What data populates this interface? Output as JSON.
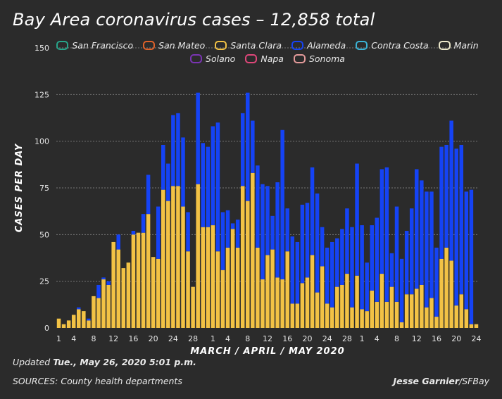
{
  "title": "Bay Area coronavirus cases – 12,858 total",
  "footer": {
    "updated_prefix": "Updated ",
    "updated_value": "Tue., May 26, 2020 5:01 p.m.",
    "sources": "SOURCES: County health departments",
    "credit_author": "Jesse Garnier",
    "credit_suffix": "/SFBay"
  },
  "colors": {
    "background": "#2b2b2b",
    "santa_clara": "#f2c245",
    "alameda": "#1543f5",
    "grid": "#777777"
  },
  "legend": [
    {
      "name": "San Francisco",
      "color": "#27a58a"
    },
    {
      "name": "San Mateo",
      "color": "#e0622a"
    },
    {
      "name": "Santa Clara",
      "color": "#f2c245"
    },
    {
      "name": "Alameda",
      "color": "#1543f5"
    },
    {
      "name": "Contra Costa",
      "color": "#3bb3d6"
    },
    {
      "name": "Marin",
      "color": "#ece7c9"
    },
    {
      "name": "Solano",
      "color": "#7a34b3"
    },
    {
      "name": "Napa",
      "color": "#e0477a"
    },
    {
      "name": "Sonoma",
      "color": "#e39a9a"
    }
  ],
  "chart_data": {
    "type": "bar",
    "stacked": true,
    "xlabel": "MARCH / APRIL / MAY 2020",
    "ylabel": "CASES PER DAY",
    "ylim": [
      0,
      150
    ],
    "yticks": [
      0,
      25,
      50,
      75,
      100,
      125,
      150
    ],
    "xtick_labels": [
      "1",
      "4",
      "8",
      "12",
      "16",
      "20",
      "24",
      "28",
      "1",
      "4",
      "8",
      "12",
      "16",
      "20",
      "24",
      "28",
      "1",
      "4",
      "8",
      "12",
      "16",
      "20",
      "24"
    ],
    "xtick_index": [
      0,
      3,
      7,
      11,
      15,
      19,
      23,
      27,
      31,
      34,
      38,
      42,
      46,
      50,
      54,
      58,
      61,
      64,
      68,
      72,
      76,
      80,
      84
    ],
    "grid": true,
    "series": [
      {
        "name": "Santa Clara",
        "color": "#f2c245",
        "values": [
          5,
          2,
          4,
          7,
          10,
          9,
          4,
          17,
          16,
          26,
          23,
          46,
          42,
          32,
          35,
          50,
          51,
          51,
          61,
          38,
          37,
          74,
          68,
          76,
          76,
          65,
          41,
          22,
          77,
          54,
          54,
          55,
          41,
          31,
          43,
          53,
          43,
          76,
          68,
          83,
          43,
          26,
          39,
          42,
          27,
          26,
          41,
          13,
          13,
          24,
          27,
          39,
          19,
          33,
          13,
          11,
          22,
          23,
          29,
          11,
          28,
          10,
          9,
          20,
          14,
          29,
          14,
          22,
          14,
          3,
          18,
          18,
          21,
          23,
          11,
          16,
          6,
          37,
          43,
          36,
          12,
          18,
          10,
          2,
          2
        ]
      },
      {
        "name": "Alameda",
        "color": "#1543f5",
        "values": [
          0,
          0,
          0,
          0,
          1,
          0,
          1,
          0,
          7,
          1,
          2,
          0,
          8,
          0,
          0,
          2,
          0,
          10,
          21,
          0,
          28,
          24,
          20,
          38,
          39,
          37,
          21,
          0,
          49,
          45,
          43,
          53,
          69,
          31,
          20,
          3,
          15,
          39,
          58,
          28,
          44,
          51,
          37,
          18,
          51,
          80,
          23,
          36,
          33,
          42,
          40,
          47,
          53,
          21,
          30,
          35,
          26,
          30,
          35,
          43,
          60,
          45,
          26,
          35,
          45,
          56,
          72,
          18,
          51,
          34,
          34,
          46,
          64,
          56,
          62,
          57,
          37,
          60,
          55,
          75,
          84,
          80,
          63,
          72,
          0
        ]
      }
    ]
  }
}
